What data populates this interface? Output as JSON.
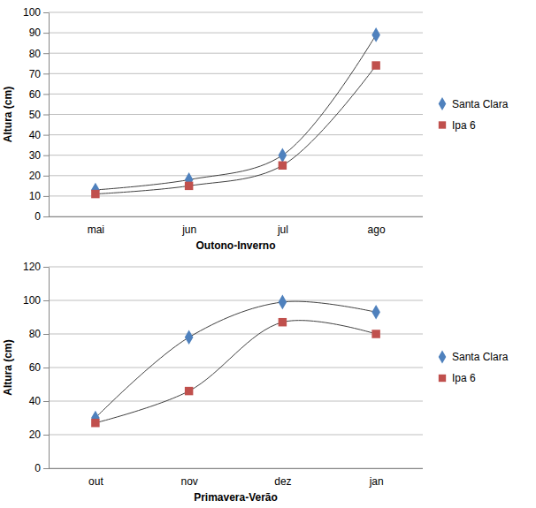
{
  "chart_data": [
    {
      "type": "line",
      "x_label": "Outono-Inverno",
      "y_label": "Altura (cm)",
      "categories": [
        "mai",
        "jun",
        "jul",
        "ago"
      ],
      "series": [
        {
          "name": "Santa Clara",
          "color": "#4f81bd",
          "marker": "diamond",
          "line_style": "smooth",
          "values": [
            13,
            18,
            30,
            89
          ]
        },
        {
          "name": "Ipa 6",
          "color": "#c0504d",
          "marker": "square",
          "line_style": "smooth",
          "values": [
            11,
            15,
            25,
            74
          ]
        }
      ],
      "ylim": [
        0,
        100
      ],
      "yticks": [
        0,
        10,
        20,
        30,
        40,
        50,
        60,
        70,
        80,
        90,
        100
      ],
      "grid": true,
      "legend": "right"
    },
    {
      "type": "line",
      "x_label": "Primavera-Verão",
      "y_label": "Altura (cm)",
      "categories": [
        "out",
        "nov",
        "dez",
        "jan"
      ],
      "series": [
        {
          "name": "Santa Clara",
          "color": "#4f81bd",
          "marker": "diamond",
          "line_style": "smooth",
          "values": [
            30,
            78,
            99,
            93
          ]
        },
        {
          "name": "Ipa 6",
          "color": "#c0504d",
          "marker": "square",
          "line_style": "smooth",
          "values": [
            27,
            46,
            87,
            80
          ]
        }
      ],
      "ylim": [
        0,
        120
      ],
      "yticks": [
        0,
        20,
        40,
        60,
        80,
        100,
        120
      ],
      "grid": true,
      "legend": "right"
    }
  ]
}
